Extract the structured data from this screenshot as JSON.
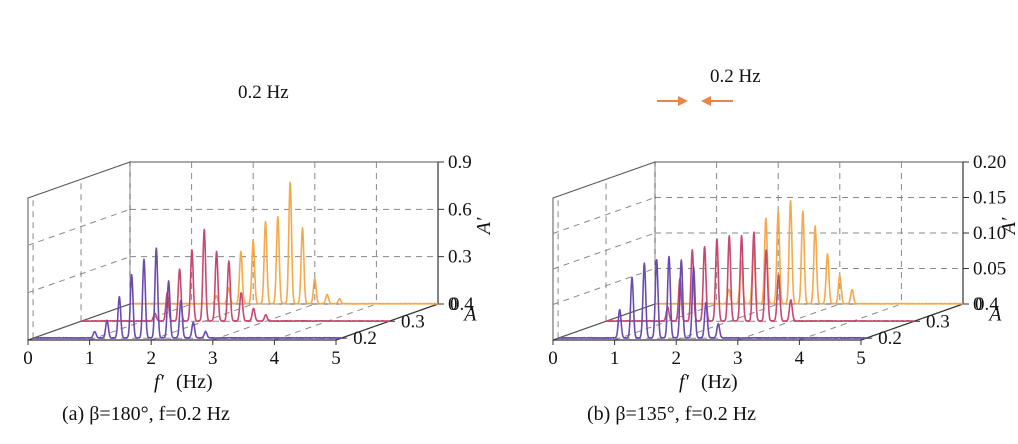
{
  "chart_data": [
    {
      "type": "line",
      "projection": "3d-waterfall",
      "caption": "(a) β=180°,  f=0.2 Hz",
      "x_axis": {
        "title_symbol": "f′",
        "title_unit": "(Hz)",
        "range": [
          0,
          5
        ],
        "ticks": [
          "0",
          "1",
          "2",
          "3",
          "4",
          "5"
        ]
      },
      "depth_axis": {
        "title": "A",
        "values": [
          0.2,
          0.3,
          0.4
        ],
        "tick_labels": [
          "0.2",
          "0.3",
          "0.4"
        ]
      },
      "z_axis": {
        "title": "A′",
        "range": [
          0,
          0.9
        ],
        "ticks": [
          "0",
          "0.3",
          "0.6",
          "0.9"
        ]
      },
      "annotation": {
        "text": "0.2 Hz"
      },
      "series": [
        {
          "name": "A=0.2",
          "depth": 0.2,
          "color": "#6a4cb0",
          "peaks": [
            [
              1.0,
              0.04
            ],
            [
              1.2,
              0.11
            ],
            [
              1.4,
              0.26
            ],
            [
              1.6,
              0.4
            ],
            [
              1.8,
              0.5
            ],
            [
              2.0,
              0.57
            ],
            [
              2.2,
              0.36
            ],
            [
              2.4,
              0.24
            ],
            [
              2.6,
              0.1
            ],
            [
              2.8,
              0.04
            ]
          ]
        },
        {
          "name": "A=0.3",
          "depth": 0.3,
          "color": "#c9486e",
          "peaks": [
            [
              1.2,
              0.05
            ],
            [
              1.4,
              0.18
            ],
            [
              1.6,
              0.33
            ],
            [
              1.8,
              0.45
            ],
            [
              2.0,
              0.58
            ],
            [
              2.2,
              0.44
            ],
            [
              2.4,
              0.38
            ],
            [
              2.6,
              0.18
            ],
            [
              2.8,
              0.08
            ],
            [
              3.0,
              0.04
            ]
          ]
        },
        {
          "name": "A=0.4",
          "depth": 0.4,
          "color": "#f5a94a",
          "peaks": [
            [
              1.4,
              0.05
            ],
            [
              1.6,
              0.1
            ],
            [
              1.8,
              0.33
            ],
            [
              2.0,
              0.4
            ],
            [
              2.2,
              0.52
            ],
            [
              2.4,
              0.55
            ],
            [
              2.6,
              0.77
            ],
            [
              2.8,
              0.48
            ],
            [
              3.0,
              0.16
            ],
            [
              3.2,
              0.06
            ],
            [
              3.4,
              0.03
            ]
          ]
        }
      ]
    },
    {
      "type": "line",
      "projection": "3d-waterfall",
      "caption": "(b) β=135°,  f=0.2 Hz",
      "x_axis": {
        "title_symbol": "f′",
        "title_unit": "(Hz)",
        "range": [
          0,
          5
        ],
        "ticks": [
          "0",
          "1",
          "2",
          "3",
          "4",
          "5"
        ]
      },
      "depth_axis": {
        "title": "A",
        "values": [
          0.2,
          0.3,
          0.4
        ],
        "tick_labels": [
          "0.2",
          "0.3",
          "0.4"
        ]
      },
      "z_axis": {
        "title": "A′",
        "range": [
          0,
          0.2
        ],
        "ticks": [
          "0",
          "0.05",
          "0.10",
          "0.15",
          "0.20"
        ]
      },
      "annotation": {
        "text": "0.2 Hz"
      },
      "series": [
        {
          "name": "A=0.2",
          "depth": 0.2,
          "color": "#6a4cb0",
          "peaks": [
            [
              1.0,
              0.04
            ],
            [
              1.2,
              0.085
            ],
            [
              1.4,
              0.105
            ],
            [
              1.6,
              0.11
            ],
            [
              1.8,
              0.115
            ],
            [
              2.0,
              0.11
            ],
            [
              2.2,
              0.1
            ],
            [
              2.4,
              0.05
            ],
            [
              2.6,
              0.02
            ]
          ]
        },
        {
          "name": "A=0.3",
          "depth": 0.3,
          "color": "#c9486e",
          "peaks": [
            [
              1.0,
              0.02
            ],
            [
              1.2,
              0.06
            ],
            [
              1.4,
              0.1
            ],
            [
              1.6,
              0.105
            ],
            [
              1.8,
              0.115
            ],
            [
              2.0,
              0.12
            ],
            [
              2.2,
              0.12
            ],
            [
              2.4,
              0.125
            ],
            [
              2.6,
              0.1
            ],
            [
              2.8,
              0.065
            ],
            [
              3.0,
              0.03
            ]
          ]
        },
        {
          "name": "A=0.4",
          "depth": 0.4,
          "color": "#f5a94a",
          "peaks": [
            [
              1.2,
              0.02
            ],
            [
              1.4,
              0.06
            ],
            [
              1.6,
              0.08
            ],
            [
              1.8,
              0.12
            ],
            [
              2.0,
              0.13
            ],
            [
              2.2,
              0.145
            ],
            [
              2.4,
              0.13
            ],
            [
              2.6,
              0.11
            ],
            [
              2.8,
              0.07
            ],
            [
              3.0,
              0.04
            ],
            [
              3.2,
              0.02
            ]
          ]
        }
      ]
    }
  ]
}
